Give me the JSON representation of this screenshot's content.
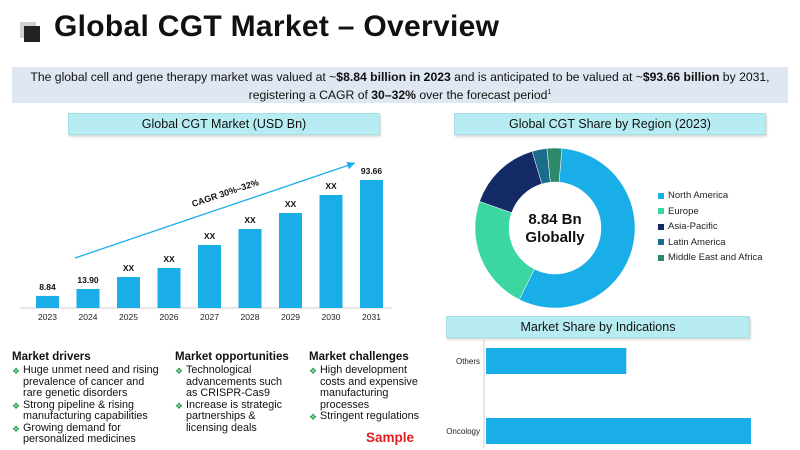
{
  "header": {
    "title": "Global CGT Market – Overview"
  },
  "summary": {
    "p1": "The global cell and gene therapy market was valued at ~",
    "b1": "$8.84 billion in 2023",
    "p2": " and is anticipated to be valued at ~",
    "b2": "$93.66 billion",
    "p3": " by 2031, registering a CAGR of ",
    "b3": "30–32%",
    "p4": " over the forecast period",
    "sup": "1"
  },
  "market_chart": {
    "header": "Global CGT Market (USD Bn)",
    "cagr_label": "CAGR 30%–32%"
  },
  "region_chart": {
    "header": "Global CGT Share by Region (2023)",
    "center_line1": "8.84 Bn",
    "center_line2": "Globally"
  },
  "indication_chart": {
    "header": "Market Share by Indications"
  },
  "sections": {
    "drivers": {
      "title": "Market drivers",
      "items": [
        {
          "lines": [
            "Huge unmet need and rising",
            "prevalence of cancer and",
            "rare genetic disorders"
          ]
        },
        {
          "lines": [
            "Strong pipeline & rising",
            "manufacturing capabilities"
          ]
        },
        {
          "lines": [
            "Growing demand for",
            "personalized medicines"
          ]
        }
      ]
    },
    "opportunities": {
      "title": "Market opportunities",
      "items": [
        {
          "lines": [
            "Technological",
            "advancements such",
            "as CRISPR-Cas9"
          ]
        },
        {
          "lines": [
            "Increase is strategic",
            "partnerships &",
            "licensing deals"
          ]
        }
      ]
    },
    "challenges": {
      "title": "Market challenges",
      "items": [
        {
          "lines": [
            "High development",
            "costs and expensive",
            "manufacturing",
            "processes"
          ]
        },
        {
          "lines": [
            "Stringent regulations"
          ]
        }
      ]
    }
  },
  "watermark": "Sample",
  "colors": {
    "bar": "#1aaee8",
    "header_bg": "#b7ecf3",
    "summary_bg": "#dfe7f2",
    "bullet": "#27a04a",
    "sample": "#e02020"
  },
  "chart_data": [
    {
      "type": "bar",
      "title": "Global CGT Market (USD Bn)",
      "categories": [
        "2023",
        "2024",
        "2025",
        "2026",
        "2027",
        "2028",
        "2029",
        "2030",
        "2031"
      ],
      "values": [
        8.84,
        13.9,
        null,
        null,
        null,
        null,
        null,
        null,
        93.66
      ],
      "data_labels": [
        "8.84",
        "13.90",
        "XX",
        "XX",
        "XX",
        "XX",
        "XX",
        "XX",
        "93.66"
      ],
      "annotation": "CAGR 30%–32%",
      "grid": false
    },
    {
      "type": "pie",
      "title": "Global CGT Share by Region (2023)",
      "labels": [
        "North America",
        "Europe",
        "Asia-Pacific",
        "Latin America",
        "Middle East and Africa"
      ],
      "values": [
        56,
        23,
        15,
        3,
        3
      ],
      "colors": [
        "#1aaee8",
        "#3cd6a0",
        "#142a66",
        "#1b6c8c",
        "#2c8a6a"
      ],
      "legend_position": "right"
    },
    {
      "type": "bar",
      "orientation": "horizontal",
      "title": "Market Share by Indications",
      "categories": [
        "Others",
        "Oncology"
      ],
      "values": [
        45,
        85
      ],
      "grid": false
    }
  ]
}
